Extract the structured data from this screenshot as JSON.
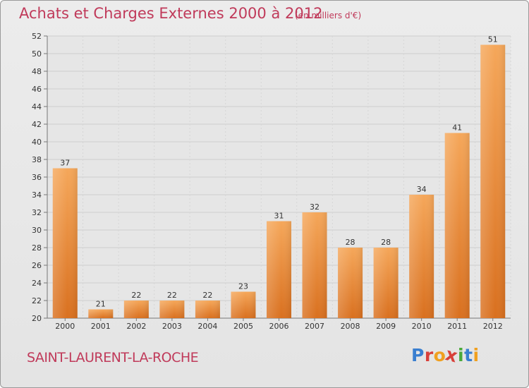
{
  "header": {
    "title": "Achats et Charges Externes 2000 à 2012",
    "unit": "(en milliers d'€)"
  },
  "footer": {
    "commune": "SAINT-LAURENT-LA-ROCHE",
    "logo_letters": [
      "P",
      "r",
      "o",
      "x",
      "i",
      "t",
      "i"
    ]
  },
  "colors": {
    "title": "#c03a5a",
    "bar_light": "#f5a75a",
    "bar_dark": "#d9701f",
    "background": "#e6e6e6"
  },
  "chart_data": {
    "type": "bar",
    "title": "Achats et Charges Externes 2000 à 2012",
    "categories": [
      "2000",
      "2001",
      "2002",
      "2003",
      "2004",
      "2005",
      "2006",
      "2007",
      "2008",
      "2009",
      "2010",
      "2011",
      "2012"
    ],
    "values": [
      37,
      21,
      22,
      22,
      22,
      23,
      31,
      32,
      28,
      28,
      34,
      41,
      51
    ],
    "ylim": [
      20,
      52
    ],
    "yticks": [
      20,
      22,
      24,
      26,
      28,
      30,
      32,
      34,
      36,
      38,
      40,
      42,
      44,
      46,
      48,
      50,
      52
    ],
    "grid": true,
    "legend": "none"
  }
}
